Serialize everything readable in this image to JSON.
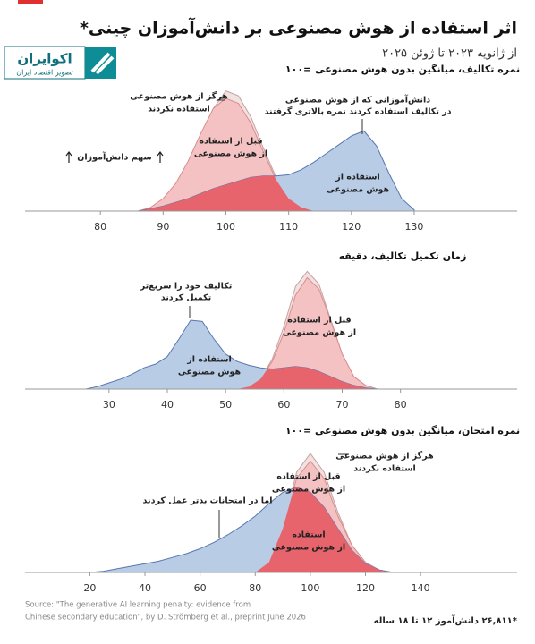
{
  "header": {
    "title": "اثر استفاده از هوش مصنوعی بر دانش‌آموزان چینی*",
    "subtitle": "از ژانویه ۲۰۲۳ تا ژوئن ۲۰۲۵",
    "logo": "اکوایران",
    "logo_tagline": "تصویر اقتصاد ایران"
  },
  "chart_data": [
    {
      "type": "area",
      "title": "نمره تکالیف، میانگین بدون هوش مصنوعی =۱۰۰",
      "y_label": "سهم دانش‌آموزان",
      "annotations": [
        [
          "دانش‌آموزانی که از هوش مصنوعی",
          "در تکالیف استفاده کردند نمره بالاتری گرفتند"
        ]
      ],
      "xlim": [
        68,
        146.4
      ],
      "ylim": [
        0,
        100
      ],
      "xticks": [
        80,
        90,
        100,
        110,
        120,
        130
      ],
      "x": [
        80,
        82,
        84,
        86,
        88,
        90,
        92,
        94,
        96,
        98,
        100,
        102,
        104,
        106,
        108,
        110,
        112,
        114,
        116,
        118,
        120,
        122,
        124,
        126,
        128,
        130
      ],
      "series": [
        {
          "name": [
            "هرگز از هوش مصنوعی",
            "استفاده نکردند"
          ],
          "color": "#f1e2e2",
          "values": [
            0,
            0,
            0,
            0,
            2,
            8,
            20,
            38,
            60,
            82,
            96,
            92,
            75,
            50,
            27,
            12,
            4,
            1,
            0,
            0,
            0,
            0,
            0,
            0,
            0,
            0
          ]
        },
        {
          "name": [
            "قبل از استفاده",
            "از هوش مصنوعی"
          ],
          "color": "#f4c2c2",
          "values": [
            0,
            0,
            0,
            0,
            3,
            10,
            22,
            40,
            62,
            82,
            90,
            86,
            70,
            47,
            25,
            10,
            3,
            0,
            0,
            0,
            0,
            0,
            0,
            0,
            0,
            0
          ]
        },
        {
          "name": [
            "استفاده از",
            "هوش مصنوعی"
          ],
          "color": "#b8cce6",
          "values": [
            0,
            0,
            0,
            0,
            2,
            4,
            7,
            10,
            14,
            18,
            21,
            24,
            27,
            28,
            28,
            29,
            33,
            39,
            46,
            53,
            60,
            64,
            52,
            30,
            10,
            1
          ]
        }
      ]
    },
    {
      "type": "area",
      "title": "زمان تکمیل تکالیف، دقیقه",
      "annotations": [
        [
          "تکالیف خود را سریع‌تر",
          "تکمیل کردند"
        ]
      ],
      "xlim": [
        15.6,
        100
      ],
      "ylim": [
        0,
        100
      ],
      "xticks": [
        30,
        40,
        50,
        60,
        70,
        80
      ],
      "x": [
        26,
        28,
        30,
        32,
        34,
        36,
        38,
        40,
        42,
        44,
        46,
        48,
        50,
        52,
        54,
        56,
        58,
        60,
        62,
        64,
        66,
        68,
        70,
        72,
        74,
        76,
        78
      ],
      "series": [
        {
          "name": null,
          "color": "#f1e2e2",
          "values": [
            0,
            0,
            0,
            0,
            0,
            0,
            0,
            0,
            0,
            0,
            0,
            0,
            0,
            0,
            2,
            8,
            24,
            50,
            82,
            94,
            84,
            56,
            28,
            10,
            3,
            0,
            0
          ]
        },
        {
          "name": [
            "قبل از استفاده",
            "از هوش مصنوعی"
          ],
          "color": "#f4c2c2",
          "values": [
            0,
            0,
            0,
            0,
            0,
            0,
            0,
            0,
            0,
            0,
            0,
            0,
            0,
            0,
            2,
            8,
            22,
            45,
            75,
            89,
            80,
            55,
            28,
            10,
            3,
            0,
            0
          ]
        },
        {
          "name": [
            "استفاده از",
            "هوش مصنوعی"
          ],
          "color": "#b8cce6",
          "values": [
            0,
            2,
            5,
            8,
            12,
            17,
            20,
            26,
            40,
            55,
            54,
            40,
            28,
            22,
            19,
            17,
            16,
            17,
            18,
            17,
            14,
            10,
            6,
            3,
            1,
            0,
            0
          ]
        }
      ]
    },
    {
      "type": "area",
      "title": "نمره امتحان، میانگین بدون هوش مصنوعی =۱۰۰",
      "annotations": [
        [
          "اما در امتحانات بدتر عمل کردند"
        ]
      ],
      "xlim": [
        -3.5,
        175
      ],
      "ylim": [
        0,
        100
      ],
      "xticks": [
        20,
        40,
        60,
        80,
        100,
        120,
        140
      ],
      "x": [
        20,
        25,
        30,
        35,
        40,
        45,
        50,
        55,
        60,
        65,
        70,
        75,
        80,
        85,
        90,
        95,
        100,
        105,
        110,
        115,
        120,
        125,
        130,
        135,
        140
      ],
      "series": [
        {
          "name": [
            "هرگز از هوش مصنوعی",
            "استفاده نکردند"
          ],
          "color": "#f1e2e2",
          "values": [
            0,
            0,
            0,
            0,
            0,
            0,
            0,
            0,
            0,
            0,
            0,
            0,
            0,
            6,
            35,
            80,
            95,
            80,
            48,
            22,
            8,
            2,
            0,
            0,
            0
          ]
        },
        {
          "name": [
            "قبل از استفاده",
            "از هوش مصنوعی"
          ],
          "color": "#f4c2c2",
          "values": [
            0,
            0,
            0,
            0,
            0,
            0,
            0,
            0,
            0,
            0,
            0,
            0,
            0,
            8,
            35,
            75,
            89,
            75,
            45,
            22,
            8,
            2,
            0,
            0,
            0
          ]
        },
        {
          "name": [
            "استفاده",
            "از هوش مصنوعی"
          ],
          "color": "#b8cce6",
          "values": [
            0,
            1,
            3,
            5,
            7,
            9,
            12,
            15,
            19,
            24,
            30,
            37,
            45,
            55,
            64,
            68,
            64,
            52,
            35,
            18,
            7,
            2,
            0,
            0,
            0
          ]
        }
      ]
    }
  ],
  "overlap_color": "#e8646c",
  "footer": {
    "source": [
      "Source: \"The generative AI learning penalty: evidence from",
      "Chinese secondary education\", by D. Strömberg et al., preprint June 2026"
    ],
    "note": "*۲۶,۸۱۱ دانش‌آموز ۱۲ تا ۱۸ ساله"
  }
}
